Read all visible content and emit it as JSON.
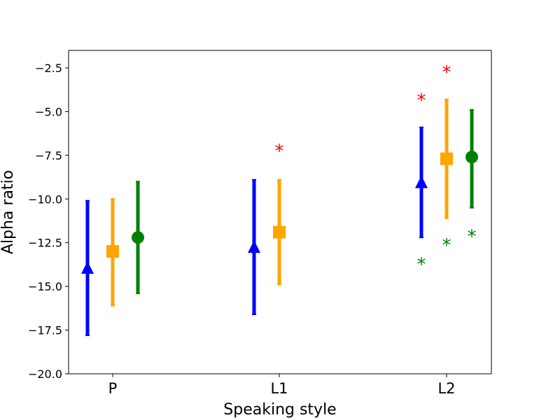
{
  "chart_data": {
    "type": "scatter",
    "xlabel": "Speaking style",
    "ylabel": "Alpha ratio",
    "categories": [
      "P",
      "L1",
      "L2"
    ],
    "ylim": [
      -20,
      -1.5
    ],
    "yticks": [
      -2.5,
      -5.0,
      -7.5,
      -10.0,
      -12.5,
      -15.0,
      -17.5,
      -20.0
    ],
    "ytick_labels": [
      "−2.5",
      "−5.0",
      "−7.5",
      "−10.0",
      "−12.5",
      "−15.0",
      "−17.5",
      "−20.0"
    ],
    "grid": false,
    "legend": "none",
    "series": [
      {
        "color": "#0000ff",
        "marker": "triangle",
        "points": [
          {
            "category": "P",
            "mean": -14.0,
            "lower": -17.8,
            "upper": -10.1
          },
          {
            "category": "L1",
            "mean": -12.8,
            "lower": -16.6,
            "upper": -8.9
          },
          {
            "category": "L2",
            "mean": -9.1,
            "lower": -12.2,
            "upper": -5.9
          }
        ]
      },
      {
        "color": "#ffa500",
        "marker": "square",
        "points": [
          {
            "category": "P",
            "mean": -13.0,
            "lower": -16.1,
            "upper": -10.0
          },
          {
            "category": "L1",
            "mean": -11.9,
            "lower": -14.9,
            "upper": -8.9
          },
          {
            "category": "L2",
            "mean": -7.7,
            "lower": -11.1,
            "upper": -4.3
          }
        ]
      },
      {
        "color": "#008000",
        "marker": "circle",
        "points": [
          {
            "category": "P",
            "mean": -12.2,
            "lower": -15.4,
            "upper": -9.0
          },
          {
            "category": "L2",
            "mean": -7.6,
            "lower": -10.5,
            "upper": -4.9
          }
        ]
      }
    ],
    "annotations": [
      {
        "text": "*",
        "color": "#ff0000",
        "category": "L1",
        "series_index": 1,
        "y": -7.0
      },
      {
        "text": "*",
        "color": "#ff0000",
        "category": "L2",
        "series_index": 0,
        "y": -4.1
      },
      {
        "text": "*",
        "color": "#ff0000",
        "category": "L2",
        "series_index": 1,
        "y": -2.5
      },
      {
        "text": "*",
        "color": "#008000",
        "category": "L2",
        "series_index": 0,
        "y": -13.5
      },
      {
        "text": "*",
        "color": "#008000",
        "category": "L2",
        "series_index": 1,
        "y": -12.4
      },
      {
        "text": "*",
        "color": "#008000",
        "category": "L2",
        "series_index": 2,
        "y": -11.9
      }
    ]
  }
}
